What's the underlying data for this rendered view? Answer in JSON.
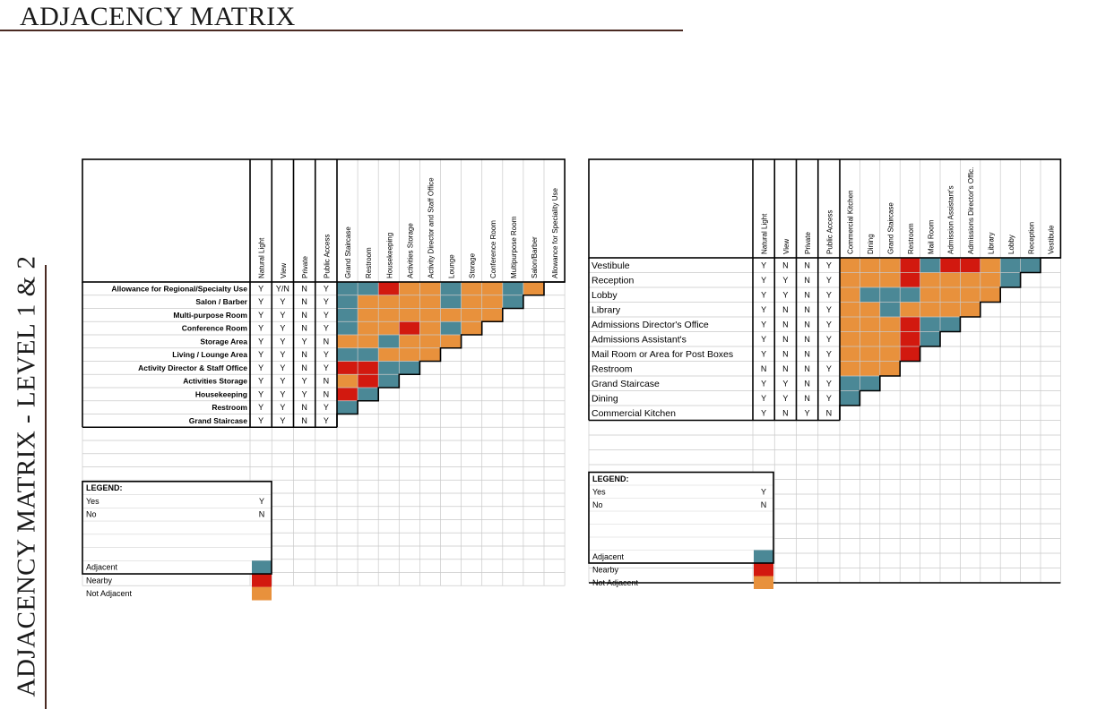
{
  "page_title": "ADJACENCY MATRIX",
  "side_title": "ADJACENCY MATRIX - LEVEL 1 & 2",
  "colors": {
    "adjacent": "#4b8896",
    "nearby": "#d2190f",
    "not_adjacent": "#e8913c"
  },
  "matrix1": {
    "attr_headers": [
      "Natural Light",
      "View",
      "Private",
      "Public Access"
    ],
    "rel_headers": [
      "Grand Staircase",
      "Restroom",
      "Housekeeping",
      "Activities Storage",
      "Activity Director and Staff Office",
      "Lounge",
      "Storage",
      "Conference Room",
      "Multipurpose Room",
      "Salon/Barber",
      "Allowance for Speciality Use"
    ],
    "rows": [
      {
        "label": "Allowance for Regional/Specialty Use",
        "attrs": [
          "Y",
          "Y/N",
          "N",
          "Y"
        ],
        "rel": [
          "A",
          "A",
          "R",
          "O",
          "O",
          "A",
          "O",
          "O",
          "A",
          "O"
        ]
      },
      {
        "label": "Salon / Barber",
        "attrs": [
          "Y",
          "Y",
          "N",
          "Y"
        ],
        "rel": [
          "A",
          "O",
          "O",
          "O",
          "O",
          "A",
          "O",
          "O",
          "A"
        ]
      },
      {
        "label": "Multi-purpose Room",
        "attrs": [
          "Y",
          "Y",
          "N",
          "Y"
        ],
        "rel": [
          "A",
          "O",
          "O",
          "O",
          "O",
          "O",
          "O",
          "O"
        ]
      },
      {
        "label": "Conference Room",
        "attrs": [
          "Y",
          "Y",
          "N",
          "Y"
        ],
        "rel": [
          "A",
          "O",
          "O",
          "R",
          "O",
          "A",
          "O"
        ]
      },
      {
        "label": "Storage Area",
        "attrs": [
          "Y",
          "Y",
          "Y",
          "N"
        ],
        "rel": [
          "O",
          "O",
          "A",
          "O",
          "O",
          "O"
        ]
      },
      {
        "label": "Living / Lounge Area",
        "attrs": [
          "Y",
          "Y",
          "N",
          "Y"
        ],
        "rel": [
          "A",
          "A",
          "O",
          "O",
          "O"
        ]
      },
      {
        "label": "Activity Director & Staff Office",
        "attrs": [
          "Y",
          "Y",
          "N",
          "Y"
        ],
        "rel": [
          "R",
          "R",
          "A",
          "A"
        ]
      },
      {
        "label": "Activities Storage",
        "attrs": [
          "Y",
          "Y",
          "Y",
          "N"
        ],
        "rel": [
          "O",
          "R",
          "A"
        ]
      },
      {
        "label": "Housekeeping",
        "attrs": [
          "Y",
          "Y",
          "Y",
          "N"
        ],
        "rel": [
          "R",
          "A"
        ]
      },
      {
        "label": "Restroom",
        "attrs": [
          "Y",
          "Y",
          "N",
          "Y"
        ],
        "rel": [
          "A"
        ]
      },
      {
        "label": "Grand Staircase",
        "attrs": [
          "Y",
          "Y",
          "N",
          "Y"
        ],
        "rel": []
      }
    ],
    "legend": {
      "title": "LEGEND:",
      "yes_label": "Yes",
      "yes_code": "Y",
      "no_label": "No",
      "no_code": "N",
      "adjacent": "Adjacent",
      "nearby": "Nearby",
      "not_adjacent": "Not Adjacent"
    }
  },
  "matrix2": {
    "attr_headers": [
      "Natural Light",
      "View",
      "Private",
      "Public Access"
    ],
    "rel_headers": [
      "Commercial Kitchen",
      "Dining",
      "Grand Staircase",
      "Restroom",
      "Mail Room",
      "Admission Assistant's",
      "Admissions Director's Offic.",
      "Library",
      "Lobby",
      "Reception",
      "Vestibule"
    ],
    "rows": [
      {
        "label": "Vestibule",
        "attrs": [
          "Y",
          "N",
          "N",
          "Y"
        ],
        "rel": [
          "O",
          "O",
          "O",
          "R",
          "A",
          "R",
          "R",
          "O",
          "A",
          "A"
        ]
      },
      {
        "label": "Reception",
        "attrs": [
          "Y",
          "Y",
          "N",
          "Y"
        ],
        "rel": [
          "O",
          "O",
          "O",
          "R",
          "O",
          "O",
          "O",
          "O",
          "A"
        ]
      },
      {
        "label": "Lobby",
        "attrs": [
          "Y",
          "Y",
          "N",
          "Y"
        ],
        "rel": [
          "O",
          "A",
          "A",
          "A",
          "O",
          "O",
          "O",
          "O"
        ]
      },
      {
        "label": "Library",
        "attrs": [
          "Y",
          "N",
          "N",
          "Y"
        ],
        "rel": [
          "O",
          "O",
          "A",
          "O",
          "O",
          "O",
          "O"
        ]
      },
      {
        "label": "Admissions Director's Office",
        "attrs": [
          "Y",
          "N",
          "N",
          "Y"
        ],
        "rel": [
          "O",
          "O",
          "O",
          "R",
          "A",
          "A"
        ]
      },
      {
        "label": "Admissions Assistant's",
        "attrs": [
          "Y",
          "N",
          "N",
          "Y"
        ],
        "rel": [
          "O",
          "O",
          "O",
          "R",
          "A"
        ]
      },
      {
        "label": "Mail Room or Area for Post Boxes",
        "attrs": [
          "Y",
          "N",
          "N",
          "Y"
        ],
        "rel": [
          "O",
          "O",
          "O",
          "R"
        ]
      },
      {
        "label": "Restroom",
        "attrs": [
          "N",
          "N",
          "N",
          "Y"
        ],
        "rel": [
          "O",
          "O",
          "O"
        ]
      },
      {
        "label": "Grand Staircase",
        "attrs": [
          "Y",
          "Y",
          "N",
          "Y"
        ],
        "rel": [
          "A",
          "A"
        ]
      },
      {
        "label": "Dining",
        "attrs": [
          "Y",
          "Y",
          "N",
          "Y"
        ],
        "rel": [
          "A"
        ]
      },
      {
        "label": "Commercial Kitchen",
        "attrs": [
          "Y",
          "N",
          "Y",
          "N"
        ],
        "rel": []
      }
    ],
    "legend": {
      "title": "LEGEND:",
      "yes_label": "Yes",
      "yes_code": "Y",
      "no_label": "No",
      "no_code": "N",
      "adjacent": "Adjacent",
      "nearby": "Nearby",
      "not_adjacent": "Not Adjacent"
    }
  }
}
